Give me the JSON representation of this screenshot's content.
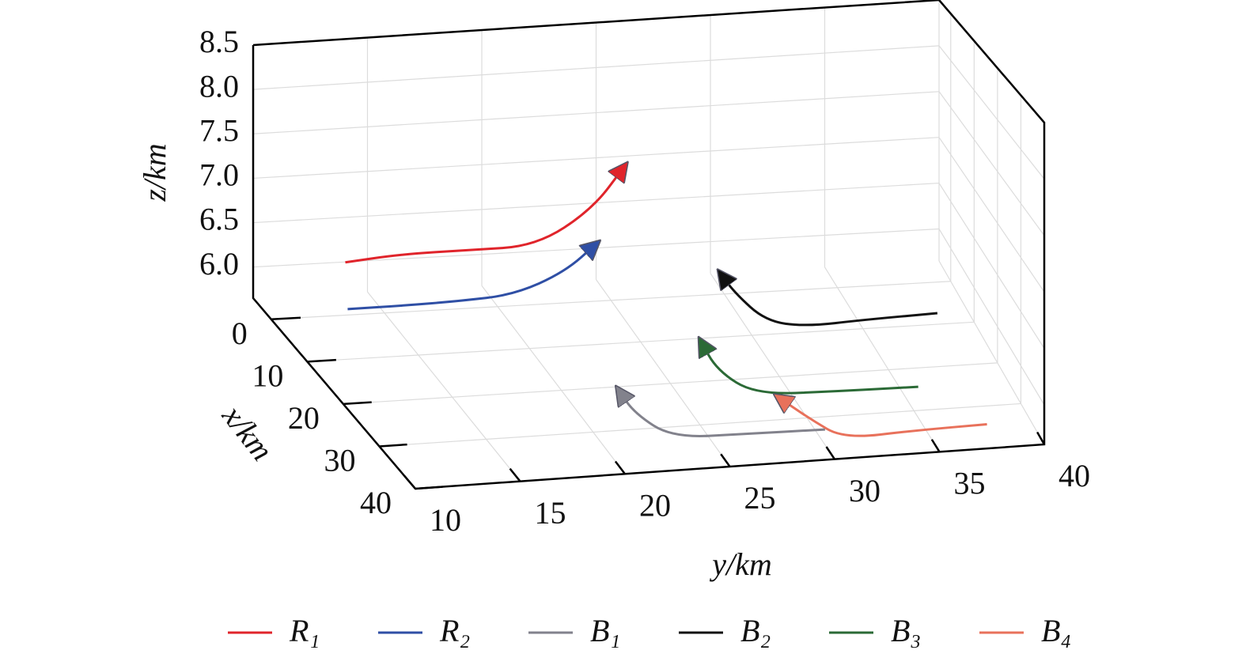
{
  "chart_data": {
    "type": "line3d",
    "xlabel": "x/km",
    "ylabel": "y/km",
    "zlabel": "z/km",
    "xlim": [
      -5,
      40
    ],
    "xticks": [
      0,
      10,
      20,
      30,
      40
    ],
    "ylim": [
      10,
      40
    ],
    "yticks": [
      10,
      15,
      20,
      25,
      30,
      35,
      40
    ],
    "zlim": [
      5.65,
      8.5
    ],
    "zticks": [
      {
        "value": 6,
        "label": "6.0"
      },
      6.5,
      {
        "value": 7,
        "label": "7.0"
      },
      7.5,
      {
        "value": 8,
        "label": "8.0"
      },
      8.5
    ],
    "grid": true,
    "series": [
      {
        "name": "R₁",
        "color": "#e0242b",
        "x": [
          5,
          5,
          5,
          5,
          5,
          5
        ],
        "y": [
          12.5,
          15,
          18,
          21,
          23.5,
          25
        ],
        "z": [
          6.45,
          6.5,
          6.5,
          6.5,
          6.85,
          7.3
        ]
      },
      {
        "name": "R₂",
        "color": "#2f4fa5",
        "x": [
          12,
          12,
          12,
          12,
          12,
          12
        ],
        "y": [
          11.5,
          14,
          16.5,
          19,
          21.3,
          22.8
        ],
        "z": [
          6.26,
          6.26,
          6.27,
          6.3,
          6.5,
          6.78
        ]
      },
      {
        "name": "B₁",
        "color": "#82828c",
        "x": [
          35,
          35,
          35,
          35,
          35
        ],
        "y": [
          30.2,
          26.5,
          23,
          21.2,
          20.4
        ],
        "z": [
          5.73,
          5.74,
          5.75,
          6.0,
          6.24
        ]
      },
      {
        "name": "B₂",
        "color": "#111111",
        "x": [
          15,
          15,
          15,
          15,
          15,
          15
        ],
        "y": [
          37.8,
          34.5,
          31.8,
          30,
          28.6,
          27.9
        ],
        "z": [
          5.97,
          5.95,
          5.92,
          6.0,
          6.3,
          6.52
        ]
      },
      {
        "name": "B₃",
        "color": "#2b6a36",
        "x": [
          30,
          30,
          30,
          30,
          30
        ],
        "y": [
          35.2,
          31.3,
          27.6,
          25.8,
          25
        ],
        "z": [
          5.87,
          5.88,
          5.9,
          6.15,
          6.45
        ]
      },
      {
        "name": "B₄",
        "color": "#e8715b",
        "x": [
          38,
          38,
          38,
          38,
          38
        ],
        "y": [
          37.5,
          34.1,
          30.7,
          29.1,
          27.5
        ],
        "z": [
          5.79,
          5.78,
          5.75,
          5.95,
          6.18
        ]
      }
    ]
  }
}
